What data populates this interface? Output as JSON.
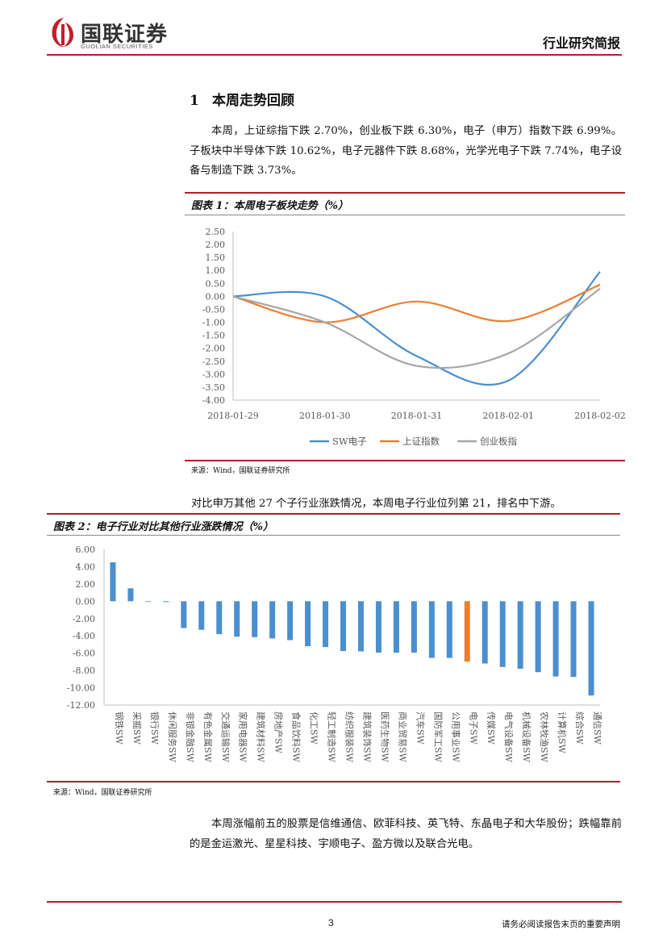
{
  "header": {
    "logo_cn": "国联证券",
    "logo_en": "GUOLIAN SECURITIES",
    "report_type": "行业研究简报"
  },
  "section": {
    "number": "1",
    "title": "本周走势回顾"
  },
  "intro_paragraph": "本周，上证综指下跌 2.70%，创业板下跌 6.30%，电子（申万）指数下跌 6.99%。子板块中半导体下跌 10.62%，电子元器件下跌 8.68%，光学光电子下跌 7.74%，电子设备与制造下跌 3.73%。",
  "figure1": {
    "title": "图表 1：本周电子板块走势（%）",
    "source": "来源：Wind，国联证券研究所"
  },
  "compare_paragraph": "对比申万其他 27 个子行业涨跌情况，本周电子行业位列第 21，排名中下游。",
  "figure2": {
    "title": "图表 2：电子行业对比其他行业涨跌情况（%）",
    "source": "来源：Wind，国联证券研究所"
  },
  "stocks_paragraph": "本周涨幅前五的股票是信维通信、欧菲科技、英飞特、东晶电子和大华股份；跌幅靠前的是金运激光、星星科技、宇顺电子、盈方微以及联合光电。",
  "footer": {
    "page": "3",
    "note": "请务必阅读报告末页的重要声明"
  },
  "chart_data": [
    {
      "type": "line",
      "x": [
        "2018-01-29",
        "2018-01-30",
        "2018-01-31",
        "2018-02-01",
        "2018-02-02"
      ],
      "yticks": [
        "2.50",
        "2.00",
        "1.50",
        "1.00",
        "0.50",
        "0.00",
        "-0.50",
        "-1.00",
        "-1.50",
        "-2.00",
        "-2.50",
        "-3.00",
        "-3.50",
        "-4.00"
      ],
      "ylim": [
        -4.0,
        2.5
      ],
      "legend_position": "bottom",
      "grid": false,
      "series": [
        {
          "name": "SW电子",
          "color": "#4a8fd0",
          "values": [
            0.0,
            0.0,
            -2.3,
            -3.25,
            0.95
          ]
        },
        {
          "name": "上证指数",
          "color": "#ee7d31",
          "values": [
            0.0,
            -1.0,
            -0.2,
            -0.95,
            0.45
          ]
        },
        {
          "name": "创业板指",
          "color": "#a6a6a6",
          "values": [
            0.0,
            -1.0,
            -2.68,
            -2.2,
            0.3
          ]
        }
      ]
    },
    {
      "type": "bar",
      "categories": [
        "钢铁SW",
        "采掘SW",
        "银行SW",
        "休闲服务SW",
        "非银金融SW",
        "有色金属SW",
        "交通运输SW",
        "家用电器SW",
        "建筑材料SW",
        "房地产SW",
        "食品饮料SW",
        "化工SW",
        "轻工制造SW",
        "纺织服装SW",
        "建筑装饰SW",
        "医药生物SW",
        "商业贸易SW",
        "汽车SW",
        "国防军工SW",
        "公用事业SW",
        "电子SW",
        "传媒SW",
        "电气设备SW",
        "机械设备SW",
        "农林牧渔SW",
        "计算机SW",
        "综合SW",
        "通信SW"
      ],
      "values": [
        4.5,
        1.5,
        0.0,
        -0.1,
        -3.1,
        -3.3,
        -3.8,
        -4.1,
        -4.15,
        -4.3,
        -4.5,
        -5.2,
        -5.3,
        -5.75,
        -5.8,
        -5.95,
        -5.95,
        -5.95,
        -6.55,
        -6.55,
        -6.99,
        -7.2,
        -7.6,
        -7.8,
        -8.2,
        -8.7,
        -8.75,
        -10.9
      ],
      "highlight": "电子SW",
      "bar_color": "#4a8fd0",
      "highlight_color": "#ee7d31",
      "yticks": [
        "6.00",
        "4.00",
        "2.00",
        "0.00",
        "-2.00",
        "-4.00",
        "-6.00",
        "-8.00",
        "-10.00",
        "-12.00"
      ],
      "ylim": [
        -12.0,
        6.0
      ],
      "grid": false
    }
  ]
}
